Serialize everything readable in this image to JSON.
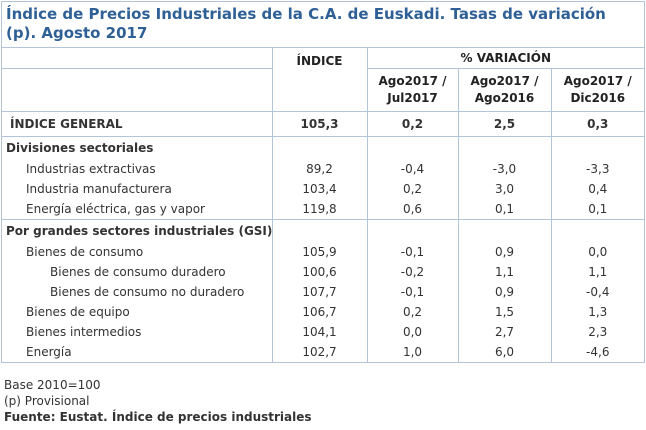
{
  "title": "Índice de Precios Industriales de la C.A. de Euskadi. Tasas de variación (p). Agosto 2017",
  "header": {
    "indice": "ÍNDICE",
    "variacion": "% VARIACIÓN",
    "periods": [
      "Ago2017 / Jul2017",
      "Ago2017 / Ago2016",
      "Ago2017 / Dic2016"
    ]
  },
  "general": {
    "label": "ÍNDICE GENERAL",
    "cells": [
      "105,3",
      "0,2",
      "2,5",
      "0,3"
    ]
  },
  "sections": [
    {
      "title": "Divisiones sectoriales",
      "rows": [
        {
          "label": "Industrias extractivas",
          "cells": [
            "89,2",
            "-0,4",
            "-3,0",
            "-3,3"
          ]
        },
        {
          "label": "Industria manufacturera",
          "cells": [
            "103,4",
            "0,2",
            "3,0",
            "0,4"
          ]
        },
        {
          "label": "Energía eléctrica, gas y vapor",
          "cells": [
            "119,8",
            "0,6",
            "0,1",
            "0,1"
          ]
        }
      ]
    },
    {
      "title": "Por grandes sectores industriales (GSI)",
      "rows": [
        {
          "label": "Bienes de consumo",
          "cells": [
            "105,9",
            "-0,1",
            "0,9",
            "0,0"
          ],
          "children": [
            {
              "label": "Bienes de consumo duradero",
              "cells": [
                "100,6",
                "-0,2",
                "1,1",
                "1,1"
              ]
            },
            {
              "label": "Bienes de consumo no duradero",
              "cells": [
                "107,7",
                "-0,1",
                "0,9",
                "-0,4"
              ]
            }
          ]
        },
        {
          "label": "Bienes de equipo",
          "cells": [
            "106,7",
            "0,2",
            "1,5",
            "1,3"
          ]
        },
        {
          "label": "Bienes intermedios",
          "cells": [
            "104,1",
            "0,0",
            "2,7",
            "2,3"
          ]
        },
        {
          "label": "Energía",
          "cells": [
            "102,7",
            "1,0",
            "6,0",
            "-4,6"
          ]
        }
      ]
    }
  ],
  "notes": [
    "Base 2010=100",
    "(p) Provisional"
  ],
  "source": "Fuente: Eustat. Índice de precios industriales"
}
